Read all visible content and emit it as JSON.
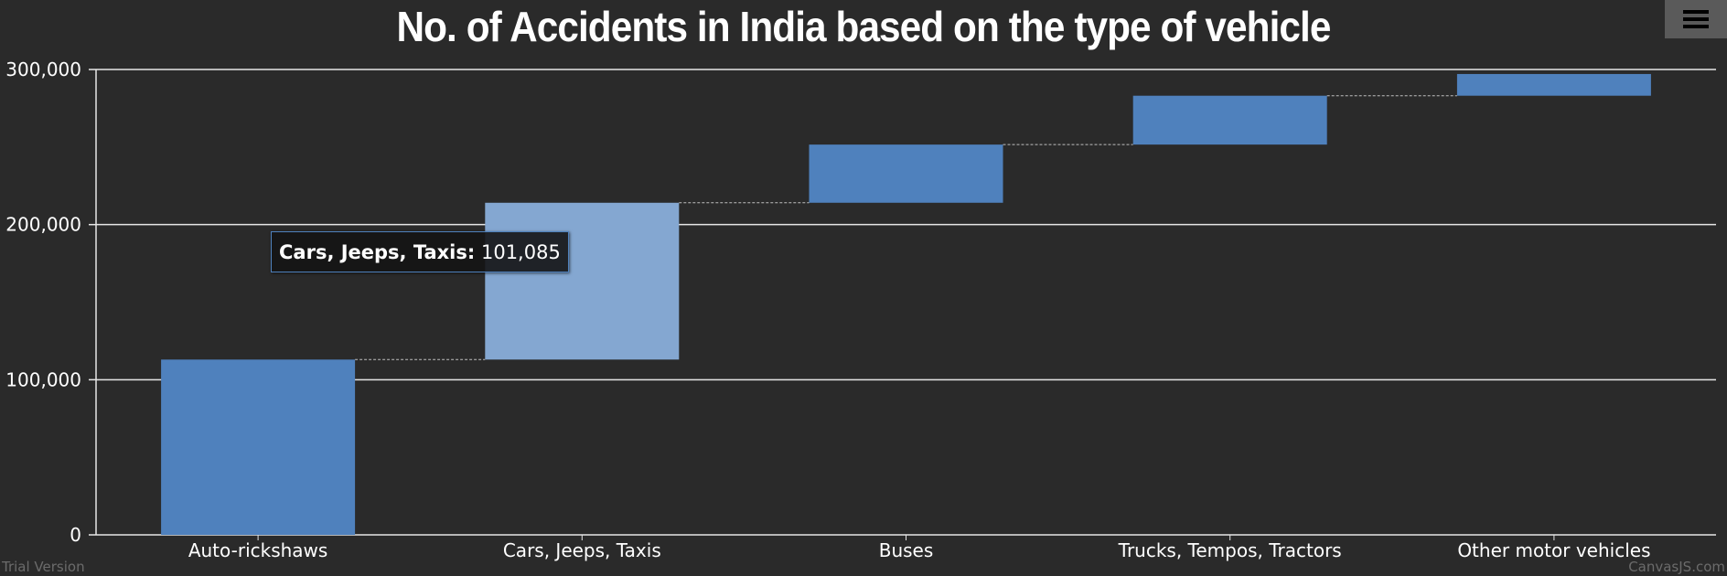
{
  "chart_data": {
    "type": "waterfall",
    "title": "No. of Accidents in India based on the type of vehicle",
    "categories": [
      "Auto-rickshaws",
      "Cars, Jeeps, Taxis",
      "Buses",
      "Trucks, Tempos, Tractors",
      "Other motor vehicles"
    ],
    "values": [
      113000,
      101085,
      37500,
      31500,
      14000
    ],
    "ylim": [
      0,
      300000
    ],
    "yticks": [
      0,
      100000,
      200000,
      300000
    ],
    "ytick_labels": [
      "0",
      "100,000",
      "200,000",
      "300,000"
    ],
    "grid": true,
    "connectors": true,
    "colors": {
      "bar": "#4f81bd",
      "highlight": "#84a7d1",
      "grid": "#e6e6e6",
      "connector": "#bfbfbf",
      "text": "#ffffff"
    },
    "highlighted_index": 1,
    "tooltip": {
      "label": "Cars, Jeeps, Taxis:",
      "value": "101,085"
    }
  },
  "ui": {
    "menu_icon": "hamburger-icon",
    "trial_text": "Trial Version",
    "credit_text": "CanvasJS.com"
  }
}
